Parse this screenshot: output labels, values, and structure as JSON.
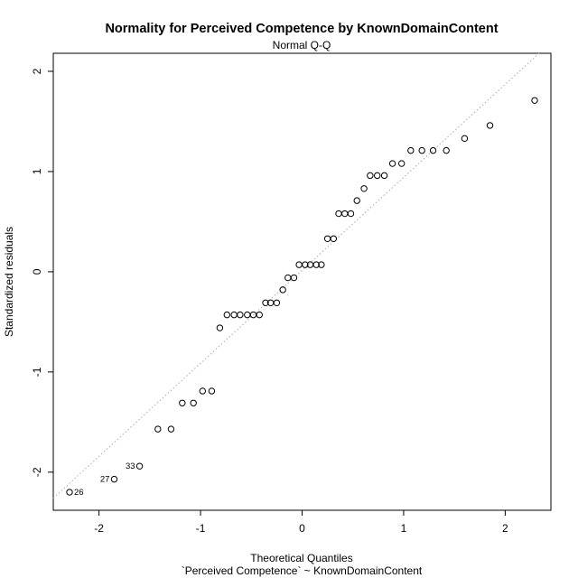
{
  "chart_data": {
    "type": "scatter",
    "title": "Normality for Perceived Competence by KnownDomainContent",
    "subtitle": "Normal Q-Q",
    "xlabel": "Theoretical Quantiles",
    "xlabel2": "`Perceived Competence` ~ KnownDomainContent",
    "ylabel": "Standardized residuals",
    "xlim": [
      -2.45,
      2.45
    ],
    "ylim": [
      -2.38,
      2.18
    ],
    "xticks": [
      -2,
      -1,
      0,
      1,
      2
    ],
    "yticks": [
      -2,
      -1,
      0,
      1,
      2
    ],
    "xtick_labels": [
      "-2",
      "-1",
      "0",
      "1",
      "2"
    ],
    "ytick_labels": [
      "-2",
      "-1",
      "0",
      "1",
      "2"
    ],
    "grid": false,
    "reference_line": {
      "style": "dotted",
      "color": "#aaaaaa",
      "intercept": 0.014,
      "slope": 0.928
    },
    "point_labels": [
      {
        "text": "26",
        "x": -2.29,
        "y": -2.2
      },
      {
        "text": "27",
        "x": -1.85,
        "y": -2.07
      },
      {
        "text": "33",
        "x": -1.6,
        "y": -1.94
      }
    ],
    "series": [
      {
        "points": [
          [
            -2.29,
            -2.2
          ],
          [
            -1.85,
            -2.07
          ],
          [
            -1.6,
            -1.94
          ],
          [
            -1.42,
            -1.57
          ],
          [
            -1.29,
            -1.57
          ],
          [
            -1.18,
            -1.31
          ],
          [
            -1.07,
            -1.31
          ],
          [
            -0.98,
            -1.19
          ],
          [
            -0.89,
            -1.19
          ],
          [
            -0.81,
            -0.56
          ],
          [
            -0.74,
            -0.43
          ],
          [
            -0.67,
            -0.43
          ],
          [
            -0.61,
            -0.43
          ],
          [
            -0.54,
            -0.43
          ],
          [
            -0.48,
            -0.43
          ],
          [
            -0.42,
            -0.43
          ],
          [
            -0.36,
            -0.31
          ],
          [
            -0.31,
            -0.31
          ],
          [
            -0.25,
            -0.31
          ],
          [
            -0.19,
            -0.18
          ],
          [
            -0.14,
            -0.06
          ],
          [
            -0.08,
            -0.06
          ],
          [
            -0.03,
            0.07
          ],
          [
            0.03,
            0.07
          ],
          [
            0.08,
            0.07
          ],
          [
            0.14,
            0.07
          ],
          [
            0.19,
            0.07
          ],
          [
            0.25,
            0.33
          ],
          [
            0.31,
            0.33
          ],
          [
            0.36,
            0.58
          ],
          [
            0.42,
            0.58
          ],
          [
            0.48,
            0.58
          ],
          [
            0.54,
            0.71
          ],
          [
            0.61,
            0.83
          ],
          [
            0.67,
            0.96
          ],
          [
            0.74,
            0.96
          ],
          [
            0.81,
            0.96
          ],
          [
            0.89,
            1.08
          ],
          [
            0.98,
            1.08
          ],
          [
            1.07,
            1.21
          ],
          [
            1.18,
            1.21
          ],
          [
            1.29,
            1.21
          ],
          [
            1.42,
            1.21
          ],
          [
            1.6,
            1.33
          ],
          [
            1.85,
            1.46
          ],
          [
            2.29,
            1.71
          ]
        ]
      }
    ]
  }
}
